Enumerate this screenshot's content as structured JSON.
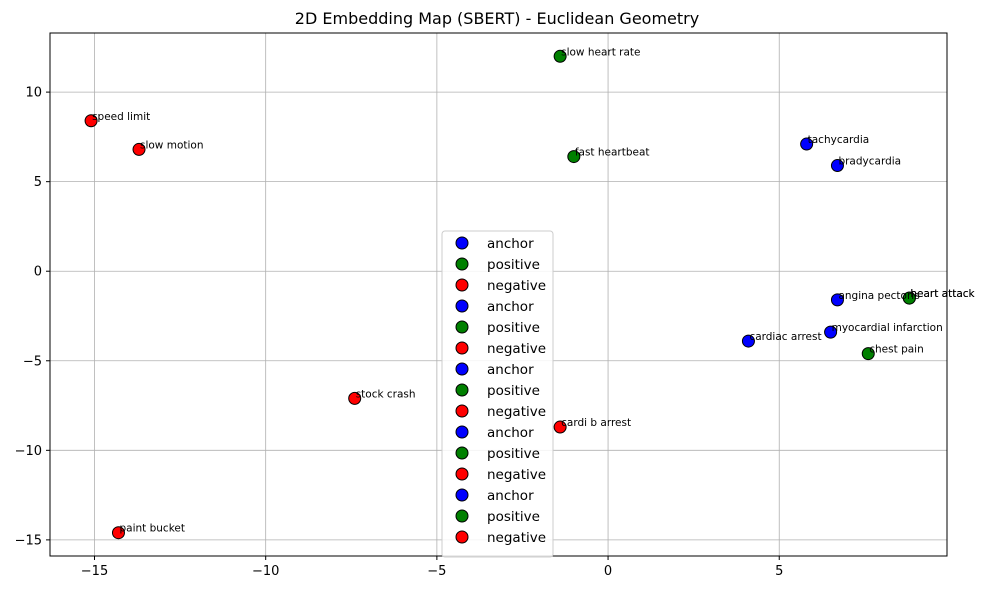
{
  "chart_data": {
    "type": "scatter",
    "title": "2D Embedding Map (SBERT) - Euclidean Geometry",
    "xlabel": "",
    "ylabel": "",
    "xlim": [
      -16.3,
      9.9
    ],
    "ylim": [
      -15.9,
      13.3
    ],
    "xticks": [
      -15,
      -10,
      -5,
      0,
      5
    ],
    "yticks": [
      -15,
      -10,
      -5,
      0,
      5,
      10
    ],
    "grid": true,
    "legend_placement": "center",
    "colors": {
      "anchor": "#0000ff",
      "positive": "#008000",
      "negative": "#ff0000"
    },
    "points": [
      {
        "label": "tachycardia",
        "role": "anchor",
        "x": 5.8,
        "y": 7.1
      },
      {
        "label": "fast heartbeat",
        "role": "positive",
        "x": -1.0,
        "y": 6.4
      },
      {
        "label": "speed limit",
        "role": "negative",
        "x": -15.1,
        "y": 8.4
      },
      {
        "label": "bradycardia",
        "role": "anchor",
        "x": 6.7,
        "y": 5.9
      },
      {
        "label": "slow heart rate",
        "role": "positive",
        "x": -1.4,
        "y": 12.0
      },
      {
        "label": "slow motion",
        "role": "negative",
        "x": -13.7,
        "y": 6.8
      },
      {
        "label": "myocardial infarction",
        "role": "anchor",
        "x": 6.5,
        "y": -3.4
      },
      {
        "label": "heart attack",
        "role": "positive",
        "x": 8.8,
        "y": -1.5
      },
      {
        "label": "stock crash",
        "role": "negative",
        "x": -7.4,
        "y": -7.1
      },
      {
        "label": "cardiac arrest",
        "role": "anchor",
        "x": 4.1,
        "y": -3.9
      },
      {
        "label": "heart attack",
        "role": "positive",
        "x": 8.8,
        "y": -1.5
      },
      {
        "label": "cardi b arrest",
        "role": "negative",
        "x": -1.4,
        "y": -8.7
      },
      {
        "label": "angina pectoris",
        "role": "anchor",
        "x": 6.7,
        "y": -1.6
      },
      {
        "label": "chest pain",
        "role": "positive",
        "x": 7.6,
        "y": -4.6
      },
      {
        "label": "paint bucket",
        "role": "negative",
        "x": -14.3,
        "y": -14.6
      }
    ],
    "legend": [
      "anchor",
      "positive",
      "negative",
      "anchor",
      "positive",
      "negative",
      "anchor",
      "positive",
      "negative",
      "anchor",
      "positive",
      "negative",
      "anchor",
      "positive",
      "negative"
    ]
  }
}
